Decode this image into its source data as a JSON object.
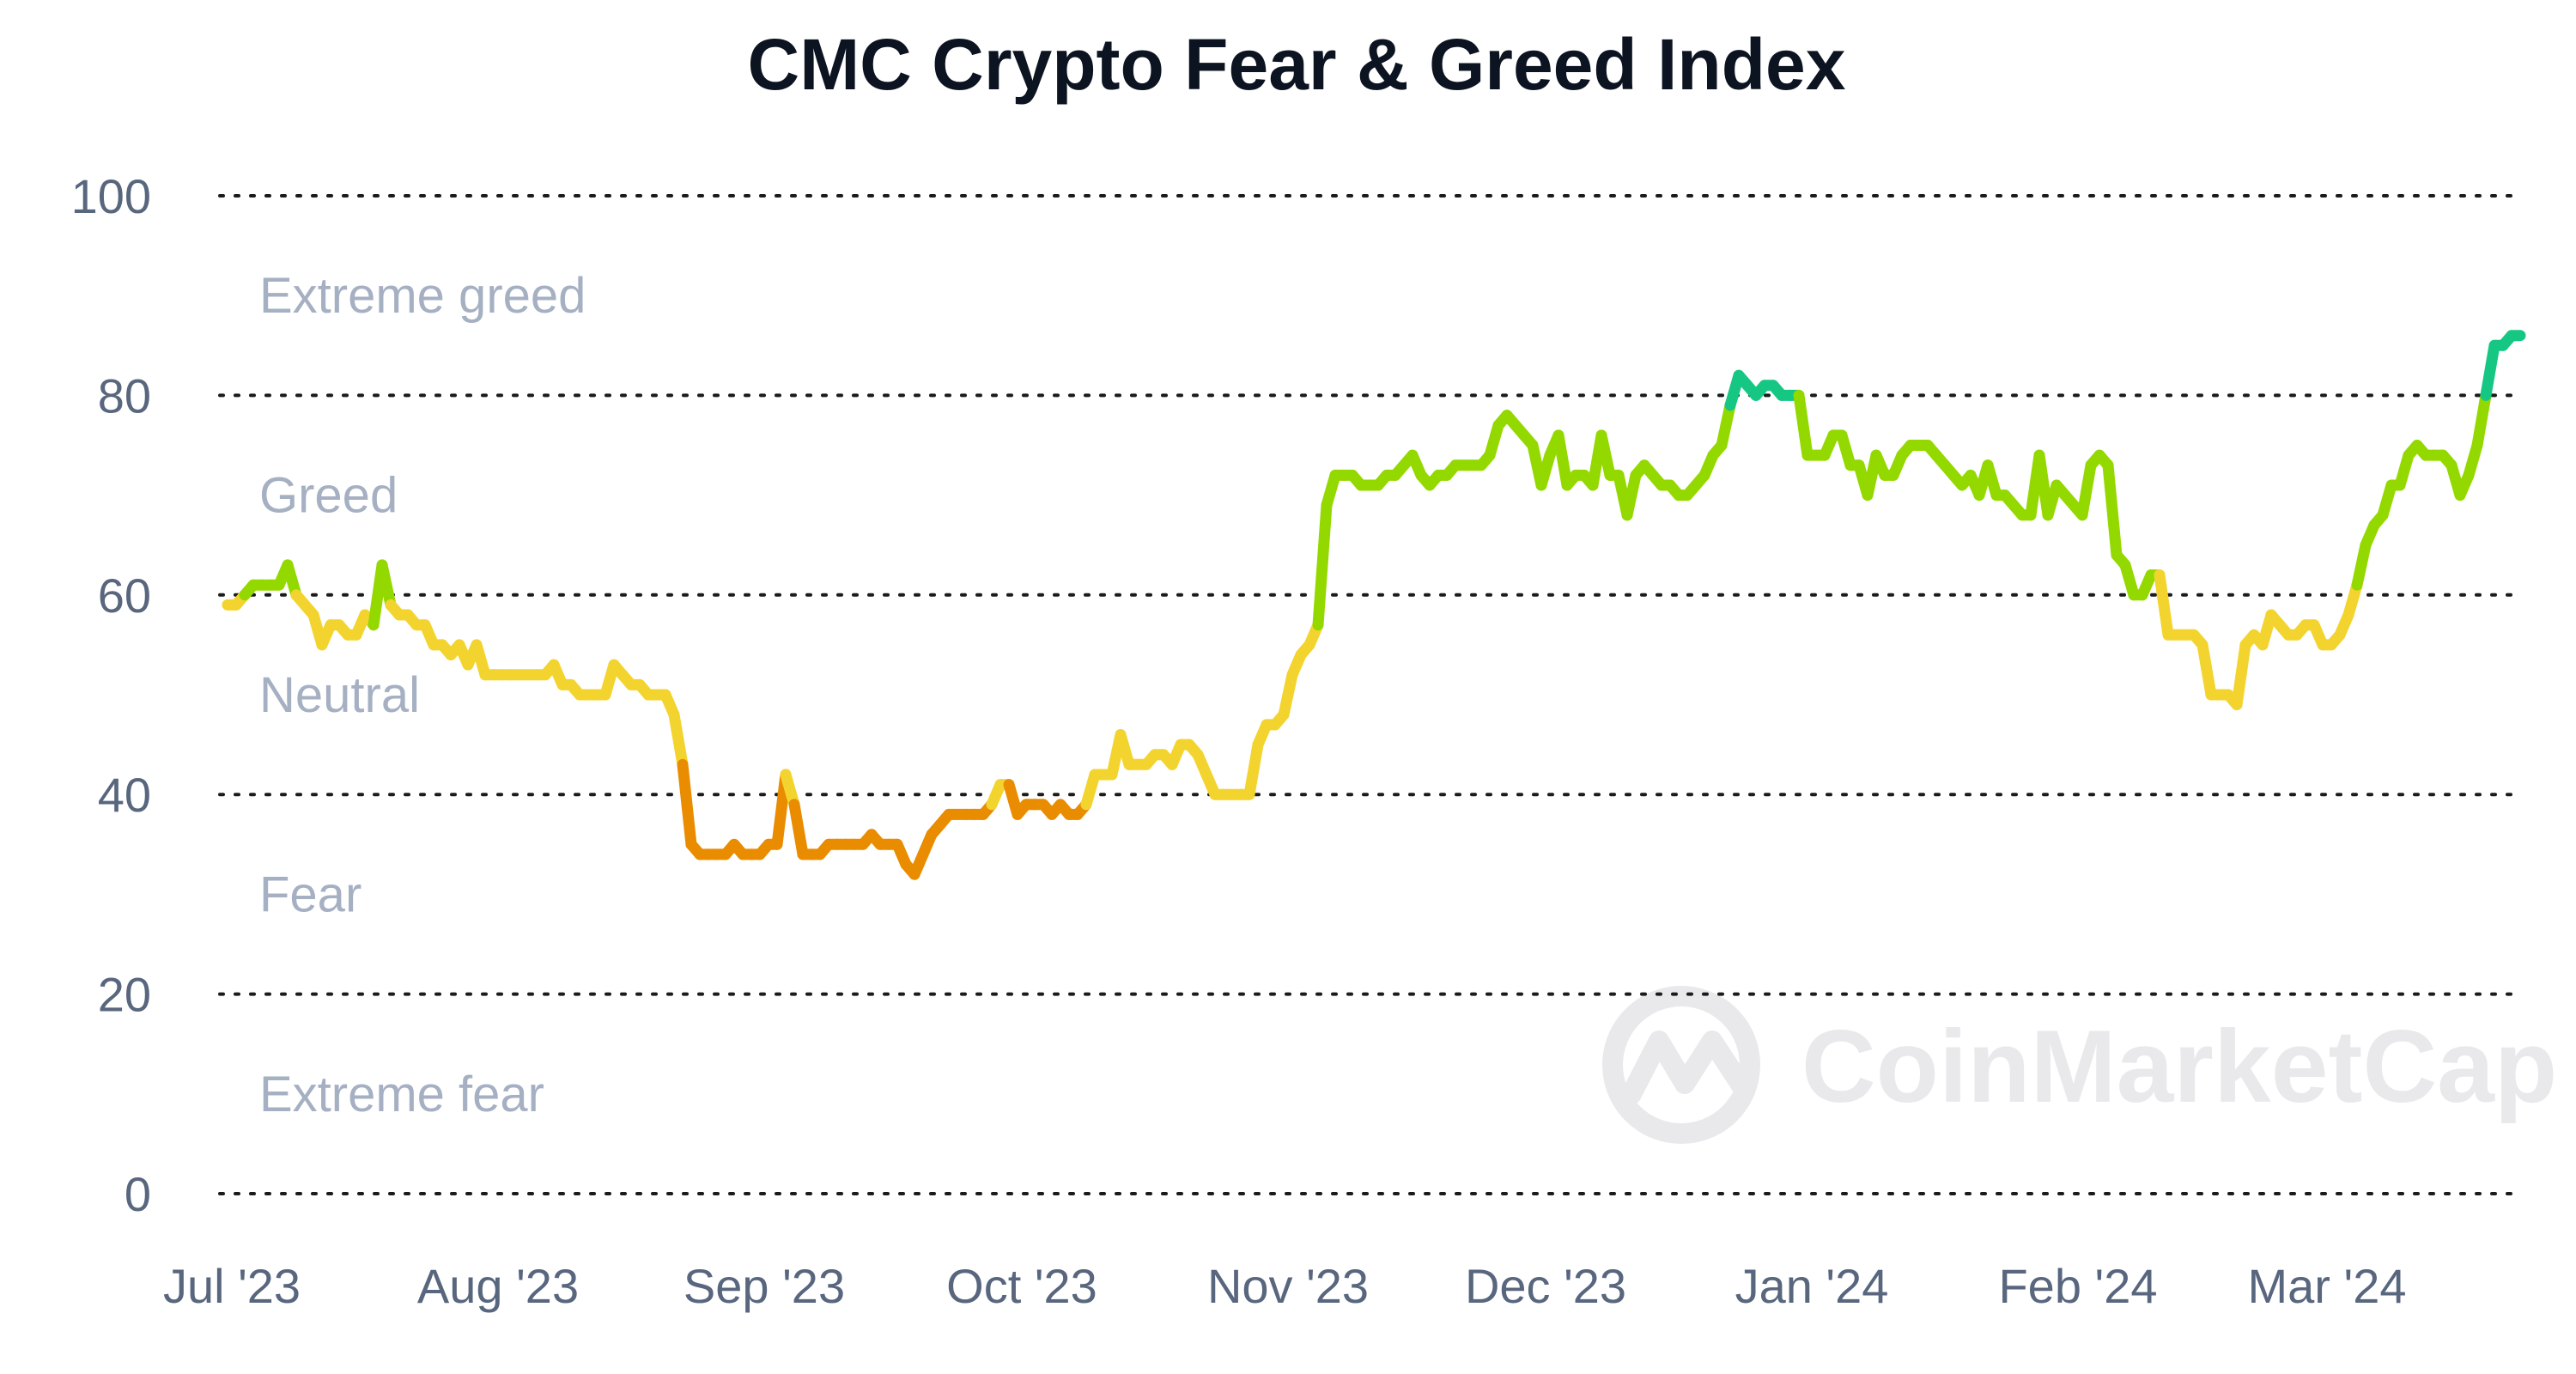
{
  "chart_data": {
    "type": "line",
    "title": "CMC Crypto Fear & Greed Index",
    "xlabel": "",
    "ylabel": "",
    "ylim": [
      0,
      100
    ],
    "yticks": [
      0,
      20,
      40,
      60,
      80,
      100
    ],
    "grid": true,
    "x_tick_labels": [
      "Jul '23",
      "Aug '23",
      "Sep '23",
      "Oct '23",
      "Nov '23",
      "Dec '23",
      "Jan '24",
      "Feb '24",
      "Mar '24"
    ],
    "x_range": [
      "2023-07-01",
      "2024-03-24"
    ],
    "bands": [
      {
        "label": "Extreme greed",
        "from": 80,
        "to": 100,
        "color": "#16c784"
      },
      {
        "label": "Greed",
        "from": 60,
        "to": 80,
        "color": "#93d900"
      },
      {
        "label": "Neutral",
        "from": 40,
        "to": 60,
        "color": "#f3d42f"
      },
      {
        "label": "Fear",
        "from": 20,
        "to": 40,
        "color": "#ea8c00"
      },
      {
        "label": "Extreme fear",
        "from": 0,
        "to": 20,
        "color": "#ea3943"
      }
    ],
    "watermark": "CoinMarketCap",
    "series": [
      {
        "points": [
          [
            "2023-07-01",
            59
          ],
          [
            "2023-07-02",
            59
          ],
          [
            "2023-07-03",
            60
          ],
          [
            "2023-07-04",
            61
          ],
          [
            "2023-07-05",
            61
          ],
          [
            "2023-07-06",
            61
          ],
          [
            "2023-07-07",
            61
          ],
          [
            "2023-07-08",
            63
          ],
          [
            "2023-07-09",
            60
          ],
          [
            "2023-07-10",
            59
          ],
          [
            "2023-07-11",
            58
          ],
          [
            "2023-07-12",
            55
          ],
          [
            "2023-07-13",
            57
          ],
          [
            "2023-07-14",
            57
          ],
          [
            "2023-07-15",
            56
          ],
          [
            "2023-07-16",
            56
          ],
          [
            "2023-07-17",
            58
          ],
          [
            "2023-07-18",
            57
          ],
          [
            "2023-07-19",
            63
          ],
          [
            "2023-07-20",
            59
          ],
          [
            "2023-07-21",
            58
          ],
          [
            "2023-07-22",
            58
          ],
          [
            "2023-07-23",
            57
          ],
          [
            "2023-07-24",
            57
          ],
          [
            "2023-07-25",
            55
          ],
          [
            "2023-07-26",
            55
          ],
          [
            "2023-07-27",
            54
          ],
          [
            "2023-07-28",
            55
          ],
          [
            "2023-07-29",
            53
          ],
          [
            "2023-07-30",
            55
          ],
          [
            "2023-07-31",
            52
          ],
          [
            "2023-08-01",
            52
          ],
          [
            "2023-08-02",
            52
          ],
          [
            "2023-08-03",
            52
          ],
          [
            "2023-08-04",
            52
          ],
          [
            "2023-08-05",
            52
          ],
          [
            "2023-08-06",
            52
          ],
          [
            "2023-08-07",
            52
          ],
          [
            "2023-08-08",
            53
          ],
          [
            "2023-08-09",
            51
          ],
          [
            "2023-08-10",
            51
          ],
          [
            "2023-08-11",
            50
          ],
          [
            "2023-08-12",
            50
          ],
          [
            "2023-08-13",
            50
          ],
          [
            "2023-08-14",
            50
          ],
          [
            "2023-08-15",
            53
          ],
          [
            "2023-08-16",
            52
          ],
          [
            "2023-08-17",
            51
          ],
          [
            "2023-08-18",
            51
          ],
          [
            "2023-08-19",
            50
          ],
          [
            "2023-08-20",
            50
          ],
          [
            "2023-08-21",
            50
          ],
          [
            "2023-08-22",
            48
          ],
          [
            "2023-08-23",
            43
          ],
          [
            "2023-08-24",
            35
          ],
          [
            "2023-08-25",
            34
          ],
          [
            "2023-08-26",
            34
          ],
          [
            "2023-08-27",
            34
          ],
          [
            "2023-08-28",
            34
          ],
          [
            "2023-08-29",
            35
          ],
          [
            "2023-08-30",
            34
          ],
          [
            "2023-08-31",
            34
          ],
          [
            "2023-09-01",
            34
          ],
          [
            "2023-09-02",
            35
          ],
          [
            "2023-09-03",
            35
          ],
          [
            "2023-09-04",
            42
          ],
          [
            "2023-09-05",
            39
          ],
          [
            "2023-09-06",
            34
          ],
          [
            "2023-09-07",
            34
          ],
          [
            "2023-09-08",
            34
          ],
          [
            "2023-09-09",
            35
          ],
          [
            "2023-09-10",
            35
          ],
          [
            "2023-09-11",
            35
          ],
          [
            "2023-09-12",
            35
          ],
          [
            "2023-09-13",
            35
          ],
          [
            "2023-09-14",
            36
          ],
          [
            "2023-09-15",
            35
          ],
          [
            "2023-09-16",
            35
          ],
          [
            "2023-09-17",
            35
          ],
          [
            "2023-09-18",
            33
          ],
          [
            "2023-09-19",
            32
          ],
          [
            "2023-09-20",
            34
          ],
          [
            "2023-09-21",
            36
          ],
          [
            "2023-09-22",
            37
          ],
          [
            "2023-09-23",
            38
          ],
          [
            "2023-09-24",
            38
          ],
          [
            "2023-09-25",
            38
          ],
          [
            "2023-09-26",
            38
          ],
          [
            "2023-09-27",
            38
          ],
          [
            "2023-09-28",
            39
          ],
          [
            "2023-09-29",
            41
          ],
          [
            "2023-09-30",
            41
          ],
          [
            "2023-10-01",
            38
          ],
          [
            "2023-10-02",
            39
          ],
          [
            "2023-10-03",
            39
          ],
          [
            "2023-10-04",
            39
          ],
          [
            "2023-10-05",
            38
          ],
          [
            "2023-10-06",
            39
          ],
          [
            "2023-10-07",
            38
          ],
          [
            "2023-10-08",
            38
          ],
          [
            "2023-10-09",
            39
          ],
          [
            "2023-10-10",
            42
          ],
          [
            "2023-10-11",
            42
          ],
          [
            "2023-10-12",
            42
          ],
          [
            "2023-10-13",
            46
          ],
          [
            "2023-10-14",
            43
          ],
          [
            "2023-10-15",
            43
          ],
          [
            "2023-10-16",
            43
          ],
          [
            "2023-10-17",
            44
          ],
          [
            "2023-10-18",
            44
          ],
          [
            "2023-10-19",
            43
          ],
          [
            "2023-10-20",
            45
          ],
          [
            "2023-10-21",
            45
          ],
          [
            "2023-10-22",
            44
          ],
          [
            "2023-10-23",
            42
          ],
          [
            "2023-10-24",
            40
          ],
          [
            "2023-10-25",
            40
          ],
          [
            "2023-10-26",
            40
          ],
          [
            "2023-10-27",
            40
          ],
          [
            "2023-10-28",
            40
          ],
          [
            "2023-10-29",
            45
          ],
          [
            "2023-10-30",
            47
          ],
          [
            "2023-10-31",
            47
          ],
          [
            "2023-11-01",
            48
          ],
          [
            "2023-11-02",
            52
          ],
          [
            "2023-11-03",
            54
          ],
          [
            "2023-11-04",
            55
          ],
          [
            "2023-11-05",
            57
          ],
          [
            "2023-11-06",
            69
          ],
          [
            "2023-11-07",
            72
          ],
          [
            "2023-11-08",
            72
          ],
          [
            "2023-11-09",
            72
          ],
          [
            "2023-11-10",
            71
          ],
          [
            "2023-11-11",
            71
          ],
          [
            "2023-11-12",
            71
          ],
          [
            "2023-11-13",
            72
          ],
          [
            "2023-11-14",
            72
          ],
          [
            "2023-11-15",
            73
          ],
          [
            "2023-11-16",
            74
          ],
          [
            "2023-11-17",
            72
          ],
          [
            "2023-11-18",
            71
          ],
          [
            "2023-11-19",
            72
          ],
          [
            "2023-11-20",
            72
          ],
          [
            "2023-11-21",
            73
          ],
          [
            "2023-11-22",
            73
          ],
          [
            "2023-11-23",
            73
          ],
          [
            "2023-11-24",
            73
          ],
          [
            "2023-11-25",
            74
          ],
          [
            "2023-11-26",
            77
          ],
          [
            "2023-11-27",
            78
          ],
          [
            "2023-11-28",
            77
          ],
          [
            "2023-11-29",
            76
          ],
          [
            "2023-11-30",
            75
          ],
          [
            "2023-12-01",
            71
          ],
          [
            "2023-12-02",
            74
          ],
          [
            "2023-12-03",
            76
          ],
          [
            "2023-12-04",
            71
          ],
          [
            "2023-12-05",
            72
          ],
          [
            "2023-12-06",
            72
          ],
          [
            "2023-12-07",
            71
          ],
          [
            "2023-12-08",
            76
          ],
          [
            "2023-12-09",
            72
          ],
          [
            "2023-12-10",
            72
          ],
          [
            "2023-12-11",
            68
          ],
          [
            "2023-12-12",
            72
          ],
          [
            "2023-12-13",
            73
          ],
          [
            "2023-12-14",
            72
          ],
          [
            "2023-12-15",
            71
          ],
          [
            "2023-12-16",
            71
          ],
          [
            "2023-12-17",
            70
          ],
          [
            "2023-12-18",
            70
          ],
          [
            "2023-12-19",
            71
          ],
          [
            "2023-12-20",
            72
          ],
          [
            "2023-12-21",
            74
          ],
          [
            "2023-12-22",
            75
          ],
          [
            "2023-12-23",
            79
          ],
          [
            "2023-12-24",
            82
          ],
          [
            "2023-12-25",
            81
          ],
          [
            "2023-12-26",
            80
          ],
          [
            "2023-12-27",
            81
          ],
          [
            "2023-12-28",
            81
          ],
          [
            "2023-12-29",
            80
          ],
          [
            "2023-12-30",
            80
          ],
          [
            "2023-12-31",
            80
          ],
          [
            "2024-01-01",
            74
          ],
          [
            "2024-01-02",
            74
          ],
          [
            "2024-01-03",
            74
          ],
          [
            "2024-01-04",
            76
          ],
          [
            "2024-01-05",
            76
          ],
          [
            "2024-01-06",
            73
          ],
          [
            "2024-01-07",
            73
          ],
          [
            "2024-01-08",
            70
          ],
          [
            "2024-01-09",
            74
          ],
          [
            "2024-01-10",
            72
          ],
          [
            "2024-01-11",
            72
          ],
          [
            "2024-01-12",
            74
          ],
          [
            "2024-01-13",
            75
          ],
          [
            "2024-01-14",
            75
          ],
          [
            "2024-01-15",
            75
          ],
          [
            "2024-01-16",
            74
          ],
          [
            "2024-01-17",
            73
          ],
          [
            "2024-01-18",
            72
          ],
          [
            "2024-01-19",
            71
          ],
          [
            "2024-01-20",
            72
          ],
          [
            "2024-01-21",
            70
          ],
          [
            "2024-01-22",
            73
          ],
          [
            "2024-01-23",
            70
          ],
          [
            "2024-01-24",
            70
          ],
          [
            "2024-01-25",
            69
          ],
          [
            "2024-01-26",
            68
          ],
          [
            "2024-01-27",
            68
          ],
          [
            "2024-01-28",
            74
          ],
          [
            "2024-01-29",
            68
          ],
          [
            "2024-01-30",
            71
          ],
          [
            "2024-01-31",
            70
          ],
          [
            "2024-02-01",
            69
          ],
          [
            "2024-02-02",
            68
          ],
          [
            "2024-02-03",
            73
          ],
          [
            "2024-02-04",
            74
          ],
          [
            "2024-02-05",
            73
          ],
          [
            "2024-02-06",
            64
          ],
          [
            "2024-02-07",
            63
          ],
          [
            "2024-02-08",
            60
          ],
          [
            "2024-02-09",
            60
          ],
          [
            "2024-02-10",
            62
          ],
          [
            "2024-02-11",
            62
          ],
          [
            "2024-02-12",
            56
          ],
          [
            "2024-02-13",
            56
          ],
          [
            "2024-02-14",
            56
          ],
          [
            "2024-02-15",
            56
          ],
          [
            "2024-02-16",
            55
          ],
          [
            "2024-02-17",
            50
          ],
          [
            "2024-02-18",
            50
          ],
          [
            "2024-02-19",
            50
          ],
          [
            "2024-02-20",
            49
          ],
          [
            "2024-02-21",
            55
          ],
          [
            "2024-02-22",
            56
          ],
          [
            "2024-02-23",
            55
          ],
          [
            "2024-02-24",
            58
          ],
          [
            "2024-02-25",
            57
          ],
          [
            "2024-02-26",
            56
          ],
          [
            "2024-02-27",
            56
          ],
          [
            "2024-02-28",
            57
          ],
          [
            "2024-02-29",
            57
          ],
          [
            "2024-03-01",
            55
          ],
          [
            "2024-03-02",
            55
          ],
          [
            "2024-03-03",
            56
          ],
          [
            "2024-03-04",
            58
          ],
          [
            "2024-03-05",
            61
          ],
          [
            "2024-03-06",
            65
          ],
          [
            "2024-03-07",
            67
          ],
          [
            "2024-03-08",
            68
          ],
          [
            "2024-03-09",
            71
          ],
          [
            "2024-03-10",
            71
          ],
          [
            "2024-03-11",
            74
          ],
          [
            "2024-03-12",
            75
          ],
          [
            "2024-03-13",
            74
          ],
          [
            "2024-03-14",
            74
          ],
          [
            "2024-03-15",
            74
          ],
          [
            "2024-03-16",
            73
          ],
          [
            "2024-03-17",
            70
          ],
          [
            "2024-03-18",
            72
          ],
          [
            "2024-03-19",
            75
          ],
          [
            "2024-03-20",
            80
          ],
          [
            "2024-03-21",
            85
          ],
          [
            "2024-03-22",
            85
          ],
          [
            "2024-03-23",
            86
          ],
          [
            "2024-03-24",
            86
          ]
        ]
      }
    ]
  }
}
